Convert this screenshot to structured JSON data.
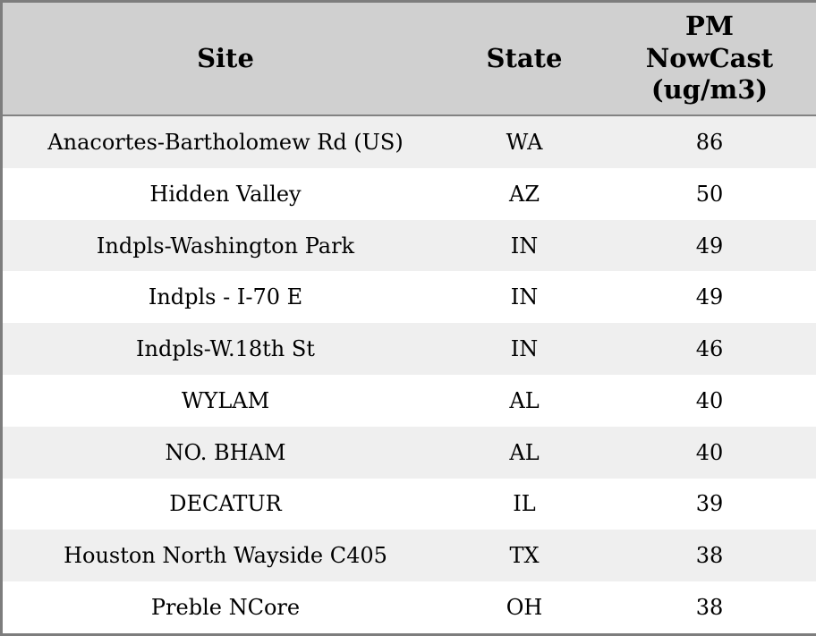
{
  "table": {
    "name": "PM NowCast readings by site",
    "columns": [
      {
        "key": "site",
        "label": "Site"
      },
      {
        "key": "state",
        "label": "State"
      },
      {
        "key": "pm",
        "label": "PM NowCast (ug/m3)"
      }
    ],
    "rows": [
      {
        "site": "Anacortes-Bartholomew Rd (US)",
        "state": "WA",
        "pm": "86"
      },
      {
        "site": "Hidden Valley",
        "state": "AZ",
        "pm": "50"
      },
      {
        "site": "Indpls-Washington Park",
        "state": "IN",
        "pm": "49"
      },
      {
        "site": "Indpls - I-70 E",
        "state": "IN",
        "pm": "49"
      },
      {
        "site": "Indpls-W.18th St",
        "state": "IN",
        "pm": "46"
      },
      {
        "site": "WYLAM",
        "state": "AL",
        "pm": "40"
      },
      {
        "site": "NO. BHAM",
        "state": "AL",
        "pm": "40"
      },
      {
        "site": "DECATUR",
        "state": "IL",
        "pm": "39"
      },
      {
        "site": "Houston North Wayside C405",
        "state": "TX",
        "pm": "38"
      },
      {
        "site": "Preble NCore",
        "state": "OH",
        "pm": "38"
      }
    ]
  },
  "colors": {
    "outer_border": "#7d7d7d",
    "header_background": "#d0d0d0",
    "header_separator": "#828282",
    "row_alt_background": "#efefef",
    "row_background": "#ffffff",
    "text": "#000000"
  }
}
